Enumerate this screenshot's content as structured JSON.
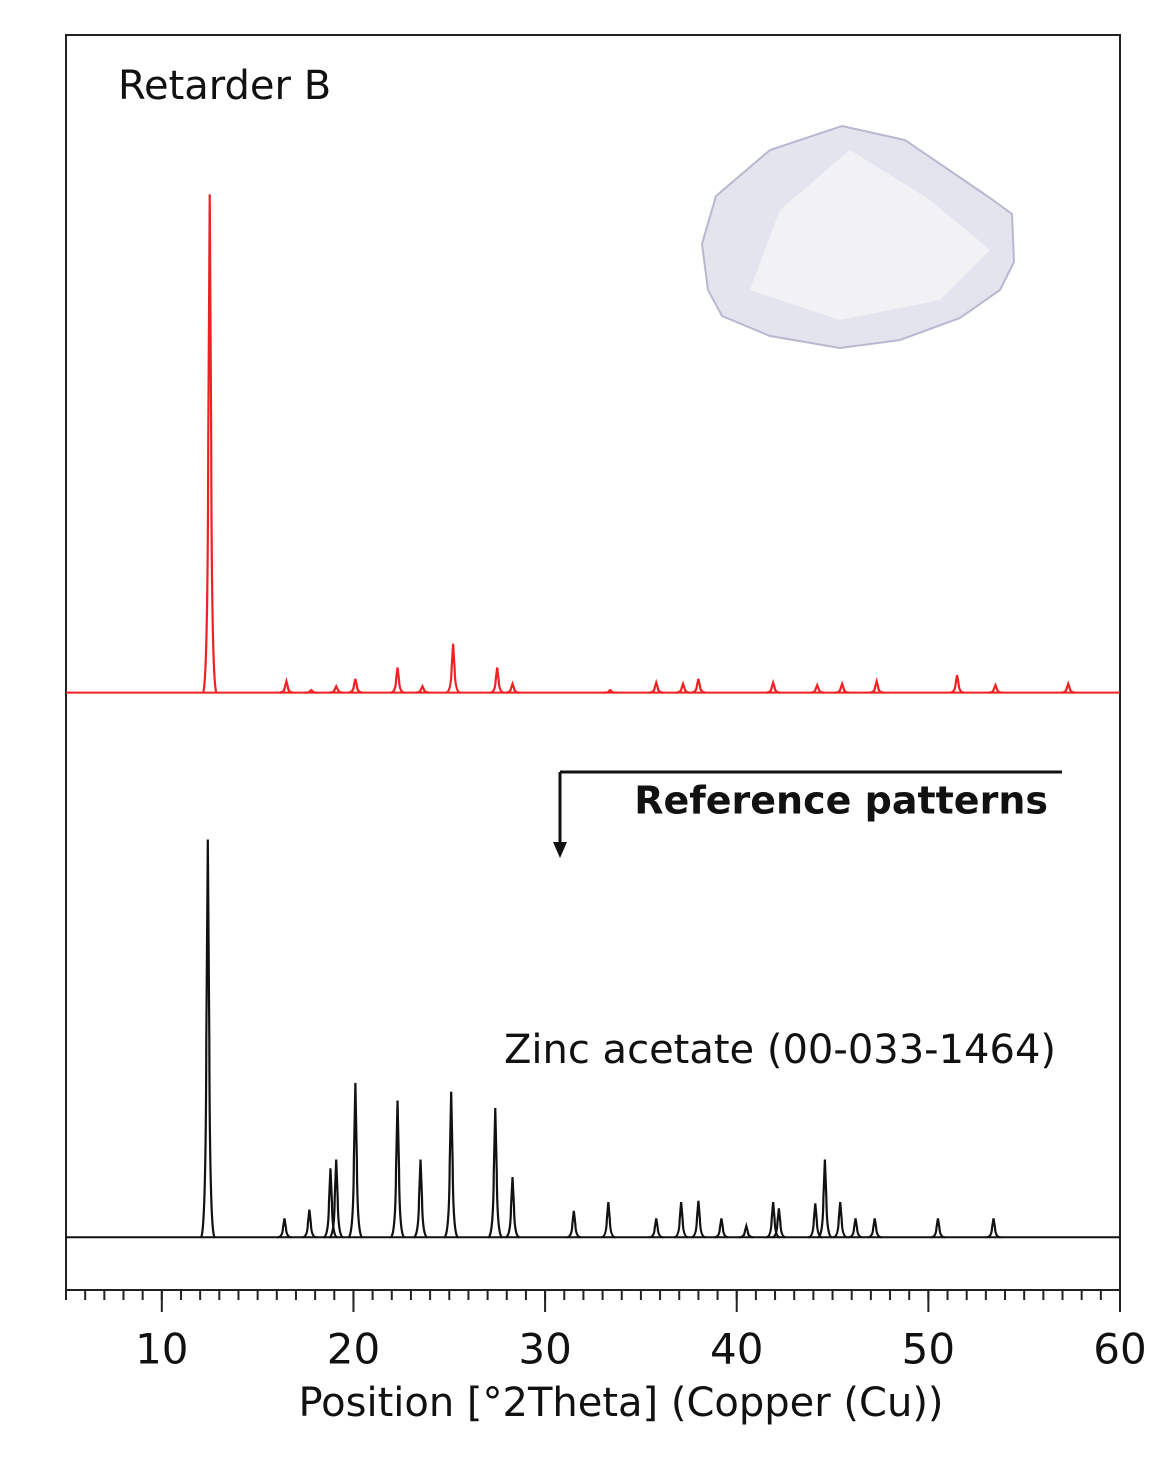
{
  "chart_data": {
    "type": "line",
    "xlabel": "Position [°2Theta] (Copper (Cu))",
    "xlim": [
      5,
      60
    ],
    "xticks": [
      10,
      20,
      30,
      40,
      50,
      60
    ],
    "xminor": 1,
    "ylim": [
      0,
      100
    ],
    "annotation": "Reference patterns",
    "series": [
      {
        "name": "Retarder B",
        "color": "#ee2222",
        "baseline": 47.6,
        "x": [
          12.5,
          16.5,
          17.8,
          19.1,
          20.1,
          22.3,
          23.6,
          25.2,
          27.5,
          28.3,
          33.4,
          35.8,
          37.2,
          38.0,
          41.9,
          44.2,
          45.5,
          47.3,
          51.5,
          53.5,
          57.3
        ],
        "values": [
          87.3,
          48.5,
          47.8,
          48.1,
          48.7,
          49.6,
          48.1,
          51.5,
          49.6,
          48.3,
          47.8,
          48.4,
          48.3,
          48.7,
          48.4,
          48.2,
          48.3,
          48.5,
          49.0,
          48.2,
          48.3
        ]
      },
      {
        "name": "Zinc acetate (00-033-1464)",
        "color": "#111111",
        "baseline": 4.2,
        "x": [
          12.4,
          16.4,
          17.7,
          18.8,
          19.1,
          20.1,
          22.3,
          23.5,
          25.1,
          27.4,
          28.3,
          31.5,
          33.3,
          35.8,
          37.1,
          38.0,
          39.2,
          40.5,
          41.9,
          42.2,
          44.1,
          44.6,
          45.4,
          46.2,
          47.2,
          50.5,
          53.4
        ],
        "values": [
          35.9,
          5.7,
          6.4,
          9.7,
          10.4,
          16.5,
          15.1,
          10.4,
          15.8,
          14.5,
          9.0,
          6.3,
          7.0,
          5.7,
          7.0,
          7.1,
          5.7,
          5.1,
          7.0,
          6.5,
          6.9,
          10.4,
          7.0,
          5.7,
          5.7,
          5.7,
          5.7
        ]
      }
    ]
  }
}
